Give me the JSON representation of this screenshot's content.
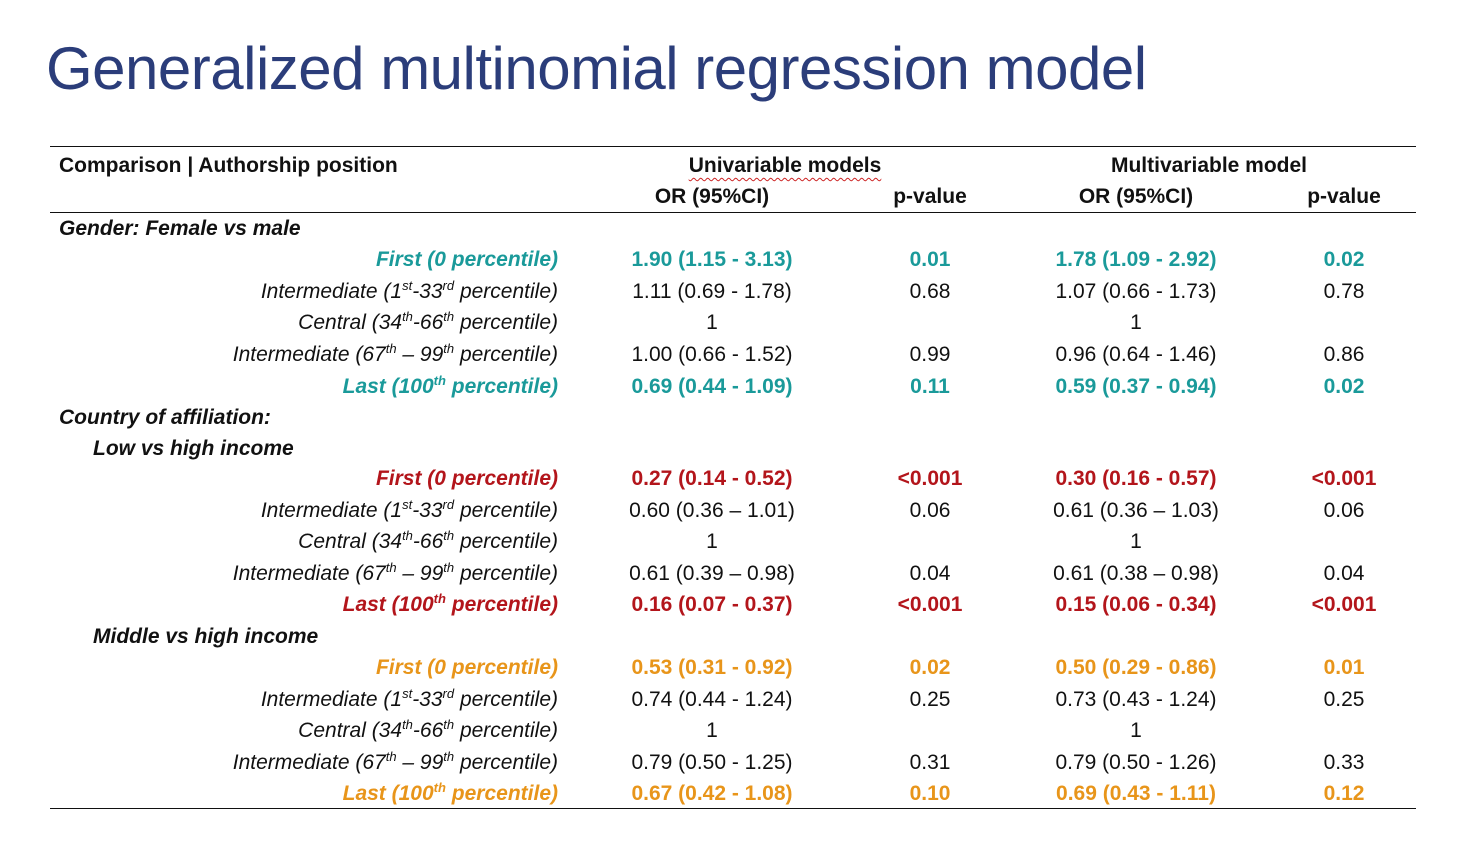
{
  "title": "Generalized multinomial regression model",
  "colors": {
    "title": "#2b3d7a",
    "teal": "#1a9a9a",
    "red": "#b3151b",
    "orange": "#e8951a",
    "text": "#111111"
  },
  "header": {
    "comparison": "Comparison | Authorship position",
    "univariable": "Univariable models",
    "multivariable": "Multivariable model",
    "or_label": "OR (95%CI)",
    "p_label": "p-value"
  },
  "sections": {
    "gender": "Gender: Female vs male",
    "country": "Country of affiliation:",
    "low": "Low vs high income",
    "middle": "Middle vs high income"
  },
  "positions": {
    "first": "First (0 percentile)",
    "int1": {
      "pre": "Intermediate (1",
      "s1": "st",
      "mid": "-33",
      "s2": "rd",
      "post": " percentile)"
    },
    "central": {
      "pre": "Central (34",
      "s1": "th",
      "mid": "-66",
      "s2": "th",
      "post": " percentile)"
    },
    "int2": {
      "pre": "Intermediate (67",
      "s1": "th",
      "mid": " – 99",
      "s2": "th",
      "post": " percentile)"
    },
    "last": {
      "pre": "Last (100",
      "s1": "th",
      "post": " percentile)"
    }
  },
  "rows": {
    "gender": {
      "first": {
        "u_or": "1.90 (1.15 - 3.13)",
        "u_p": "0.01",
        "m_or": "1.78 (1.09 - 2.92)",
        "m_p": "0.02"
      },
      "int1": {
        "u_or": "1.11 (0.69 - 1.78)",
        "u_p": "0.68",
        "m_or": "1.07 (0.66 - 1.73)",
        "m_p": "0.78"
      },
      "central": {
        "u_or": "1",
        "u_p": "",
        "m_or": "1",
        "m_p": ""
      },
      "int2": {
        "u_or": "1.00 (0.66 - 1.52)",
        "u_p": "0.99",
        "m_or": "0.96 (0.64 - 1.46)",
        "m_p": "0.86"
      },
      "last": {
        "u_or": "0.69 (0.44 - 1.09)",
        "u_p": "0.11",
        "m_or": "0.59 (0.37 - 0.94)",
        "m_p": "0.02"
      }
    },
    "low": {
      "first": {
        "u_or": "0.27 (0.14 - 0.52)",
        "u_p": "<0.001",
        "m_or": "0.30 (0.16 - 0.57)",
        "m_p": "<0.001"
      },
      "int1": {
        "u_or": "0.60 (0.36 – 1.01)",
        "u_p": "0.06",
        "m_or": "0.61 (0.36 – 1.03)",
        "m_p": "0.06"
      },
      "central": {
        "u_or": "1",
        "u_p": "",
        "m_or": "1",
        "m_p": ""
      },
      "int2": {
        "u_or": "0.61 (0.39 – 0.98)",
        "u_p": "0.04",
        "m_or": "0.61 (0.38 – 0.98)",
        "m_p": "0.04"
      },
      "last": {
        "u_or": "0.16 (0.07 - 0.37)",
        "u_p": "<0.001",
        "m_or": "0.15 (0.06 - 0.34)",
        "m_p": "<0.001"
      }
    },
    "middle": {
      "first": {
        "u_or": "0.53 (0.31 - 0.92)",
        "u_p": "0.02",
        "m_or": "0.50 (0.29 - 0.86)",
        "m_p": "0.01"
      },
      "int1": {
        "u_or": "0.74 (0.44 - 1.24)",
        "u_p": "0.25",
        "m_or": "0.73 (0.43 - 1.24)",
        "m_p": "0.25"
      },
      "central": {
        "u_or": "1",
        "u_p": "",
        "m_or": "1",
        "m_p": ""
      },
      "int2": {
        "u_or": "0.79 (0.50 - 1.25)",
        "u_p": "0.31",
        "m_or": "0.79 (0.50 - 1.26)",
        "m_p": "0.33"
      },
      "last": {
        "u_or": "0.67 (0.42 - 1.08)",
        "u_p": "0.10",
        "m_or": "0.69 (0.43 - 1.11)",
        "m_p": "0.12"
      }
    }
  }
}
